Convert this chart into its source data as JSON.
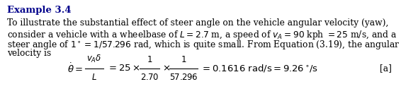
{
  "title": "Example 3.4",
  "body_lines": [
    "To illustrate the substantial effect of steer angle on the vehicle angular velocity (yaw),",
    "consider a vehicle with a wheelbase of $L = 2.7$ m, a speed of $v_A = 90$ kph $= 25$ m/s, and a",
    "steer angle of $1^\\circ = 1/57.296$ rad, which is quite small. From Equation (3.19), the angular",
    "velocity is"
  ],
  "eq_parts": {
    "lhs": "$\\dot{\\theta} = $",
    "frac1_num": "$v_A\\delta$",
    "frac1_den": "$L$",
    "eq2": "$= 25 \\times$",
    "frac2_num": "$1$",
    "frac2_den": "$2.70$",
    "cross": "$\\times$",
    "frac3_num": "$1$",
    "frac3_den": "$57.296$",
    "rhs": "$= 0.1616$ rad/s $= 9.26^\\circ$/s"
  },
  "label": "[a]",
  "bg_color": "#ffffff",
  "text_color": "#000000",
  "title_color": "#00008B",
  "title_fontsize": 9.5,
  "body_fontsize": 8.8,
  "eq_fontsize": 9.5
}
